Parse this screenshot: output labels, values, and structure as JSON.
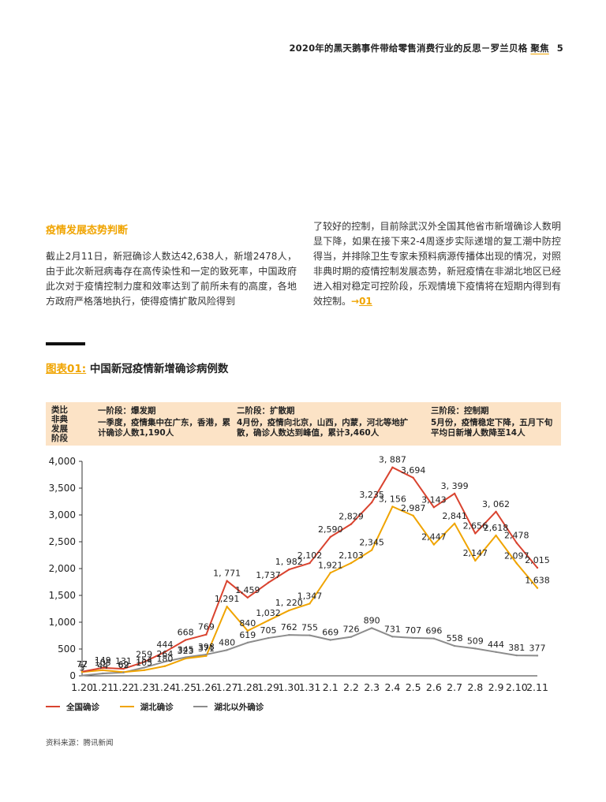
{
  "header": {
    "title": "2020年的黑天鹅事件带给零售消费行业的反思－罗兰贝格",
    "brand": "聚焦",
    "page": "5"
  },
  "section": {
    "title": "疫情发展态势判断",
    "left_text": "截止2月11日，新冠确诊人数达42,638人，新增2478人，由于此次新冠病毒存在高传染性和一定的致死率，中国政府此次对于疫情控制力度和效率达到了前所未有的高度，各地方政府严格落地执行，使得疫情扩散风险得到",
    "right_text": "了较好的控制，目前除武汉外全国其他省市新增确诊人数明显下降，如果在接下来2-4周逐步实际递增的复工潮中防控得当，并排除卫生专家未预料病源传播体出现的情况，对照非典时期的疫情控制发展态势，新冠疫情在非湖北地区已经进入相对稳定可控阶段，乐观情境下疫情将在短期内得到有效控制。",
    "link_arrow": "→",
    "link_text": "01"
  },
  "figure": {
    "label": "图表01:",
    "title": "中国新冠疫情新增确诊病例数",
    "stage_header": "类比非典发展阶段",
    "stages": [
      {
        "title": "一阶段：爆发期",
        "desc": "一季度，疫情集中在广东，香港，累计确诊人数1,190人"
      },
      {
        "title": "二阶段：扩散期",
        "desc": "4月份，疫情向北京，山西，内蒙，河北等地扩散，确诊人数达到峰值，累计3,460人"
      },
      {
        "title": "三阶段：控制期",
        "desc": "5月份，疫情稳定下降，五月下旬平均日新增人数降至14人"
      }
    ]
  },
  "chart_data": {
    "type": "line",
    "categories": [
      "1.20",
      "1.21",
      "1.22",
      "1.23",
      "1.24",
      "1.25",
      "1.26",
      "1.27",
      "1.28",
      "1.29",
      "1.30",
      "1.31",
      "2.1",
      "2.2",
      "2.3",
      "2.4",
      "2.5",
      "2.6",
      "2.7",
      "2.8",
      "2.9",
      "2.10",
      "2.11"
    ],
    "ylim": [
      0,
      4000
    ],
    "yticks": [
      0,
      500,
      1000,
      1500,
      2000,
      2500,
      3000,
      3500,
      4000
    ],
    "ytick_labels": [
      "0",
      "500",
      "1,000",
      "1,500",
      "2,000",
      "2,500",
      "3,000",
      "3,500",
      "4,000"
    ],
    "series": [
      {
        "name": "全国确诊",
        "color": "#d9432f",
        "values": [
          77,
          149,
          131,
          259,
          444,
          668,
          769,
          1771,
          1459,
          1737,
          1982,
          2102,
          2590,
          2829,
          3235,
          3887,
          3694,
          3143,
          3399,
          2656,
          3062,
          2478,
          2015
        ],
        "labels": [
          "77",
          "149",
          "131",
          "259",
          "444",
          "668",
          "769",
          "1, 771",
          "1,459",
          "1,737",
          "1, 982",
          "2,102",
          "2,590",
          "2,829",
          "3,235",
          "3, 887",
          "3,694",
          "3,143",
          "3, 399",
          "2,656",
          "3, 062",
          "2,478",
          "2,015"
        ]
      },
      {
        "name": "湖北确诊",
        "color": "#f0a400",
        "values": [
          72,
          105,
          69,
          105,
          180,
          323,
          371,
          1291,
          840,
          1032,
          1220,
          1347,
          1921,
          2103,
          2345,
          3156,
          2987,
          2447,
          2841,
          2147,
          2618,
          2097,
          1638
        ],
        "labels": [
          "72",
          "105",
          "69",
          "105",
          "180",
          "323",
          "371",
          "1,291",
          "840",
          "1,032",
          "1, 220",
          "1,347",
          "1,921",
          "2,103",
          "2,345",
          "3, 156",
          "2,987",
          "2,447",
          "2,841",
          "2,147",
          "2,618",
          "2,097",
          "1,638"
        ]
      },
      {
        "name": "湖北以外确诊",
        "color": "#8c8c8c",
        "values": [
          5,
          44,
          62,
          154,
          264,
          345,
          398,
          480,
          619,
          705,
          762,
          755,
          669,
          726,
          890,
          731,
          707,
          696,
          558,
          509,
          444,
          381,
          377
        ],
        "labels": [
          "5",
          "44",
          "62",
          "154",
          "264",
          "345",
          "398",
          "480",
          "619",
          "705",
          "762",
          "755",
          "669",
          "726",
          "890",
          "731",
          "707",
          "696",
          "558",
          "509",
          "444",
          "381",
          "377"
        ]
      }
    ],
    "legend_position": "bottom-left"
  },
  "source": "资料来源：腾讯新闻"
}
